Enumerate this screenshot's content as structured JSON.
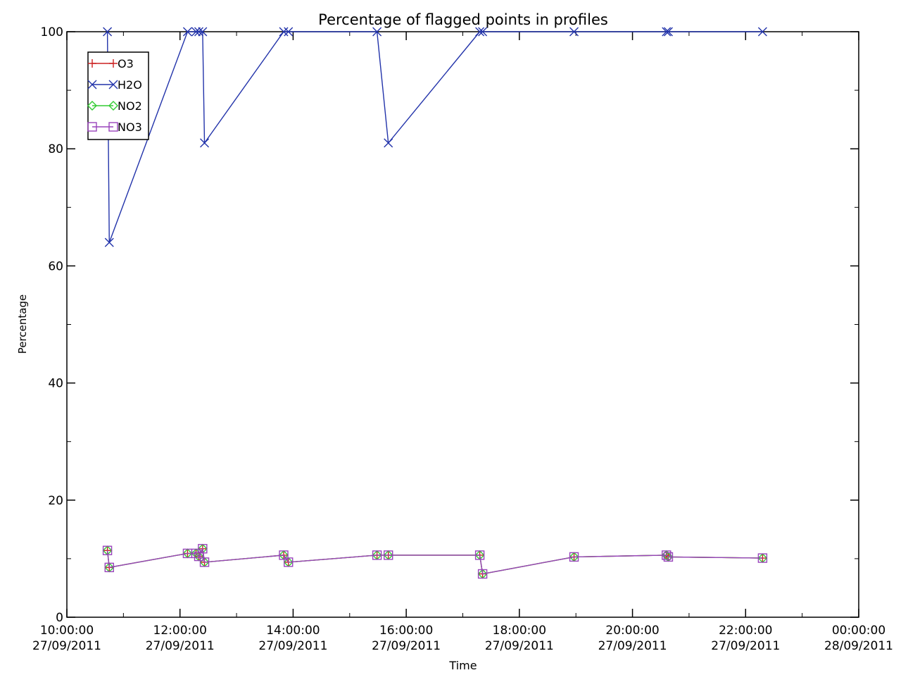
{
  "chart_data": {
    "type": "line",
    "title": "Percentage of flagged points in profiles",
    "xlabel": "Time",
    "ylabel": "Percentage",
    "xlim": [
      "27/09/2011 10:00:00",
      "28/09/2011 00:00:00"
    ],
    "ylim": [
      0,
      100
    ],
    "x_ticks": [
      {
        "time": "10:00:00",
        "date": "27/09/2011"
      },
      {
        "time": "12:00:00",
        "date": "27/09/2011"
      },
      {
        "time": "14:00:00",
        "date": "27/09/2011"
      },
      {
        "time": "16:00:00",
        "date": "27/09/2011"
      },
      {
        "time": "18:00:00",
        "date": "27/09/2011"
      },
      {
        "time": "20:00:00",
        "date": "27/09/2011"
      },
      {
        "time": "22:00:00",
        "date": "27/09/2011"
      },
      {
        "time": "00:00:00",
        "date": "28/09/2011"
      }
    ],
    "y_ticks": [
      "0",
      "20",
      "40",
      "60",
      "80",
      "100"
    ],
    "legend_placement": "top-left",
    "series": [
      {
        "name": "O3",
        "color": "#cc2222",
        "marker": "plus",
        "x": [
          "10:43",
          "10:45",
          "12:08",
          "12:17",
          "12:20",
          "12:24",
          "12:26",
          "13:50",
          "13:55",
          "15:29",
          "15:41",
          "17:18",
          "17:21",
          "18:58",
          "20:36",
          "20:38",
          "22:18"
        ],
        "y": [
          11.4,
          8.5,
          10.9,
          10.9,
          10.4,
          11.7,
          9.4,
          10.6,
          9.4,
          10.6,
          10.6,
          10.6,
          7.4,
          10.3,
          10.6,
          10.3,
          10.1
        ]
      },
      {
        "name": "H2O",
        "color": "#2233aa",
        "marker": "x",
        "x": [
          "10:43",
          "10:45",
          "12:08",
          "12:17",
          "12:20",
          "12:24",
          "12:26",
          "13:50",
          "13:55",
          "15:29",
          "15:41",
          "17:18",
          "17:21",
          "18:58",
          "20:36",
          "20:38",
          "22:18"
        ],
        "y": [
          100,
          64,
          100,
          100,
          100,
          100,
          81,
          100,
          100,
          100,
          81,
          100,
          100,
          100,
          100,
          100,
          100
        ]
      },
      {
        "name": "NO2",
        "color": "#33cc33",
        "marker": "diamond",
        "x": [
          "10:43",
          "10:45",
          "12:08",
          "12:17",
          "12:20",
          "12:24",
          "12:26",
          "13:50",
          "13:55",
          "15:29",
          "15:41",
          "17:18",
          "17:21",
          "18:58",
          "20:36",
          "20:38",
          "22:18"
        ],
        "y": [
          11.4,
          8.5,
          10.9,
          10.9,
          10.4,
          11.7,
          9.4,
          10.6,
          9.4,
          10.6,
          10.6,
          10.6,
          7.4,
          10.3,
          10.6,
          10.3,
          10.1
        ]
      },
      {
        "name": "NO3",
        "color": "#9944bb",
        "marker": "square",
        "x": [
          "10:43",
          "10:45",
          "12:08",
          "12:17",
          "12:20",
          "12:24",
          "12:26",
          "13:50",
          "13:55",
          "15:29",
          "15:41",
          "17:18",
          "17:21",
          "18:58",
          "20:36",
          "20:38",
          "22:18"
        ],
        "y": [
          11.4,
          8.5,
          10.9,
          10.9,
          10.4,
          11.7,
          9.4,
          10.6,
          9.4,
          10.6,
          10.6,
          10.6,
          7.4,
          10.3,
          10.6,
          10.3,
          10.1
        ]
      }
    ]
  }
}
